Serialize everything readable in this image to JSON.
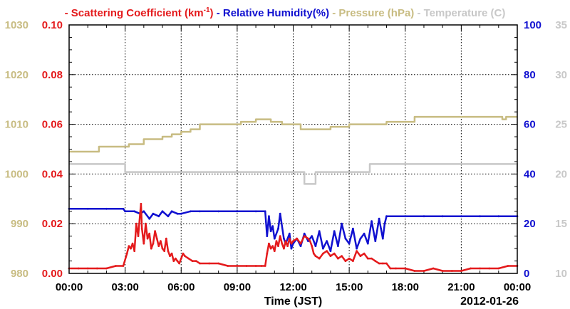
{
  "chart_data": {
    "type": "line",
    "xlabel": "Time (JST)",
    "date_label": "2012-01-26",
    "x_range_hours": [
      0,
      24
    ],
    "x_tick_labels": [
      "00:00",
      "03:00",
      "06:00",
      "09:00",
      "12:00",
      "15:00",
      "18:00",
      "21:00",
      "00:00"
    ],
    "grid": true,
    "legend": [
      {
        "id": "scat",
        "prefix": "- ",
        "text": "Scattering Coefficient (km",
        "sup": "-1",
        "suffix": ")",
        "color": "#e41a1c"
      },
      {
        "id": "rh",
        "prefix": "- ",
        "text": "Relative Humidity(%)",
        "color": "#1010d0"
      },
      {
        "id": "pres",
        "prefix": "- ",
        "text": "Pressure (hPa)",
        "color": "#c8bc82"
      },
      {
        "id": "temp",
        "prefix": "- ",
        "text": "Temperature (",
        "suffix": "C)",
        "color": "#c8c8c8"
      }
    ],
    "axes": {
      "pressure": {
        "range": [
          980,
          1030
        ],
        "ticks": [
          "980",
          "990",
          "1000",
          "1010",
          "1020",
          "1030"
        ],
        "color": "#c8bc82"
      },
      "scattering": {
        "range": [
          0,
          0.1
        ],
        "ticks": [
          "0.00",
          "0.02",
          "0.04",
          "0.06",
          "0.08",
          "0.10"
        ],
        "color": "#e41a1c"
      },
      "humidity": {
        "range": [
          0,
          100
        ],
        "ticks": [
          "0",
          "20",
          "40",
          "60",
          "80",
          "100"
        ],
        "color": "#1010d0"
      },
      "temperature": {
        "range": [
          10,
          35
        ],
        "ticks": [
          "10",
          "15",
          "20",
          "25",
          "30",
          "35"
        ],
        "color": "#c8c8c8"
      }
    },
    "series": [
      {
        "name": "Pressure (hPa)",
        "axis": "pressure",
        "color": "#c8bc82",
        "step": true,
        "x": [
          0,
          0.5,
          1.0,
          1.6,
          2.2,
          2.8,
          3.2,
          3.6,
          4.0,
          4.5,
          5.0,
          5.5,
          6.0,
          6.5,
          7.0,
          8.5,
          9.2,
          9.6,
          10.0,
          10.4,
          10.8,
          11.4,
          12.0,
          12.4,
          13.0,
          14.0,
          15.0,
          16.0,
          17.0,
          17.8,
          18.5,
          19.0,
          20.0,
          21.0,
          22.0,
          23.0,
          23.2,
          23.4,
          24.0
        ],
        "y": [
          1004.5,
          1004.5,
          1004.5,
          1005.5,
          1005.5,
          1005.5,
          1006.0,
          1006.0,
          1007.0,
          1007.0,
          1007.5,
          1008.0,
          1008.5,
          1009.0,
          1010.0,
          1010.0,
          1010.5,
          1010.5,
          1011.0,
          1011.0,
          1010.5,
          1010.0,
          1010.0,
          1009.0,
          1009.0,
          1009.5,
          1010.0,
          1010.0,
          1010.5,
          1010.5,
          1011.5,
          1011.5,
          1011.5,
          1011.5,
          1011.5,
          1011.5,
          1011.0,
          1011.5,
          1011.5
        ]
      },
      {
        "name": "Temperature (C)",
        "axis": "temperature",
        "color": "#c8c8c8",
        "step": true,
        "x": [
          0,
          1.0,
          2.0,
          2.9,
          3.0,
          6.0,
          9.0,
          12.0,
          12.5,
          12.6,
          13.1,
          13.2,
          15.0,
          16.0,
          16.1,
          18.0,
          21.0,
          23.3,
          24.0
        ],
        "y": [
          21.0,
          21.0,
          21.0,
          21.0,
          20.2,
          20.2,
          20.2,
          20.2,
          20.2,
          19.0,
          19.0,
          20.2,
          20.2,
          20.2,
          21.0,
          21.0,
          21.0,
          21.0,
          20.2
        ]
      },
      {
        "name": "Relative Humidity(%)",
        "axis": "humidity",
        "color": "#1010d0",
        "x": [
          0,
          1.0,
          2.0,
          2.9,
          3.0,
          3.5,
          3.8,
          4.0,
          4.3,
          4.5,
          4.8,
          5.0,
          5.3,
          5.5,
          5.8,
          6.0,
          6.5,
          7.0,
          8.0,
          9.0,
          10.0,
          10.5,
          10.6,
          10.7,
          10.8,
          10.9,
          11.0,
          11.2,
          11.3,
          11.5,
          11.6,
          11.8,
          11.9,
          12.0,
          12.2,
          12.4,
          12.6,
          12.8,
          13.0,
          13.2,
          13.4,
          13.6,
          13.8,
          14.0,
          14.2,
          14.4,
          14.6,
          14.8,
          15.0,
          15.2,
          15.4,
          15.6,
          15.8,
          16.0,
          16.2,
          16.4,
          16.6,
          16.7,
          16.8,
          16.9,
          17.0,
          18.0,
          19.0,
          20.0,
          21.0,
          22.0,
          23.0,
          24.0
        ],
        "y": [
          26,
          26,
          26,
          26,
          25,
          25,
          24,
          25,
          22,
          24,
          23,
          25,
          23,
          25,
          24,
          24,
          25,
          25,
          25,
          25,
          25,
          25,
          15,
          23,
          17,
          19,
          14,
          18,
          24,
          14,
          12,
          16,
          10,
          12,
          14,
          11,
          16,
          13,
          15,
          11,
          17,
          10,
          13,
          9,
          17,
          11,
          20,
          14,
          12,
          18,
          10,
          14,
          16,
          12,
          21,
          13,
          22,
          18,
          14,
          20,
          23,
          23,
          23,
          23,
          23,
          23,
          23,
          23
        ]
      },
      {
        "name": "Scattering Coefficient (km-1)",
        "axis": "scattering",
        "color": "#e41a1c",
        "x": [
          0,
          0.5,
          1.0,
          1.5,
          2.0,
          2.5,
          2.9,
          3.1,
          3.2,
          3.3,
          3.4,
          3.5,
          3.6,
          3.7,
          3.8,
          3.85,
          3.9,
          4.0,
          4.1,
          4.2,
          4.3,
          4.4,
          4.5,
          4.6,
          4.7,
          4.8,
          4.9,
          5.0,
          5.1,
          5.2,
          5.3,
          5.4,
          5.5,
          5.6,
          5.7,
          5.8,
          5.9,
          6.0,
          6.1,
          6.2,
          6.4,
          6.6,
          6.8,
          7.0,
          7.5,
          8.0,
          8.5,
          9.0,
          9.5,
          10.0,
          10.3,
          10.5,
          10.6,
          10.7,
          10.8,
          10.9,
          11.0,
          11.1,
          11.2,
          11.3,
          11.4,
          11.5,
          11.6,
          11.7,
          11.8,
          11.9,
          12.0,
          12.2,
          12.4,
          12.6,
          12.8,
          12.9,
          13.0,
          13.1,
          13.2,
          13.4,
          13.6,
          13.8,
          14.0,
          14.2,
          14.4,
          14.6,
          14.8,
          15.0,
          15.2,
          15.4,
          15.6,
          15.8,
          16.0,
          16.2,
          16.4,
          16.6,
          16.8,
          17.0,
          17.2,
          17.5,
          18.0,
          18.5,
          19.0,
          19.5,
          20.0,
          20.5,
          21.0,
          21.5,
          22.0,
          22.5,
          23.0,
          23.5,
          24.0
        ],
        "y": [
          0.002,
          0.002,
          0.002,
          0.002,
          0.002,
          0.003,
          0.003,
          0.008,
          0.011,
          0.01,
          0.012,
          0.009,
          0.02,
          0.015,
          0.024,
          0.028,
          0.018,
          0.012,
          0.02,
          0.014,
          0.016,
          0.01,
          0.012,
          0.017,
          0.014,
          0.011,
          0.013,
          0.01,
          0.009,
          0.014,
          0.009,
          0.007,
          0.008,
          0.005,
          0.006,
          0.005,
          0.004,
          0.006,
          0.008,
          0.007,
          0.006,
          0.005,
          0.005,
          0.004,
          0.004,
          0.004,
          0.003,
          0.003,
          0.003,
          0.003,
          0.003,
          0.003,
          0.008,
          0.012,
          0.01,
          0.011,
          0.009,
          0.013,
          0.011,
          0.015,
          0.012,
          0.01,
          0.013,
          0.011,
          0.014,
          0.012,
          0.013,
          0.014,
          0.012,
          0.015,
          0.014,
          0.013,
          0.011,
          0.008,
          0.007,
          0.006,
          0.008,
          0.009,
          0.007,
          0.008,
          0.006,
          0.007,
          0.005,
          0.006,
          0.005,
          0.009,
          0.007,
          0.008,
          0.006,
          0.006,
          0.005,
          0.004,
          0.004,
          0.004,
          0.002,
          0.002,
          0.002,
          0.001,
          0.001,
          0.002,
          0.001,
          0.001,
          0.001,
          0.002,
          0.002,
          0.002,
          0.002,
          0.003,
          0.003
        ]
      }
    ]
  }
}
